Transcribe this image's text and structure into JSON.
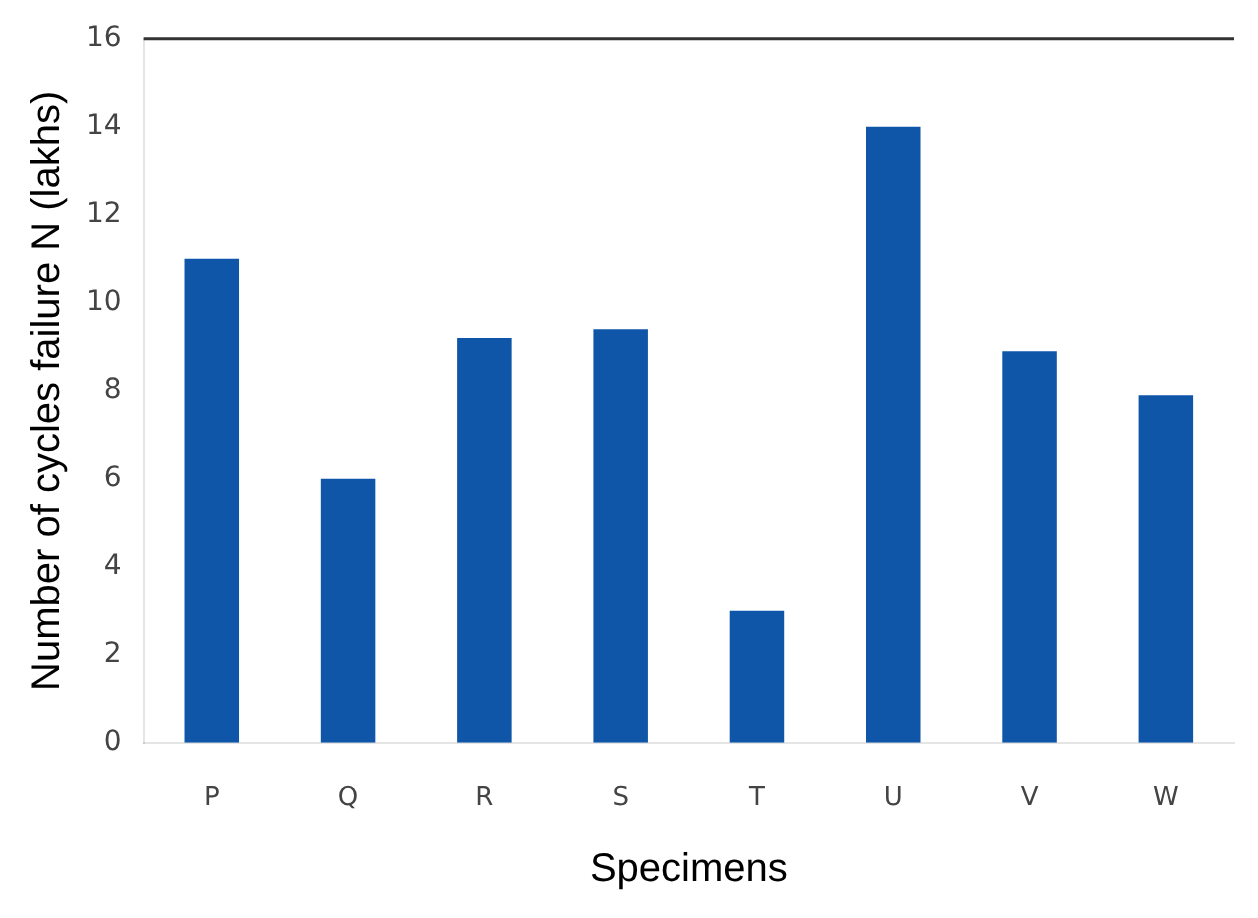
{
  "chart_data": {
    "type": "bar",
    "xlabel": "Specimens",
    "ylabel": "Number of cycles failure N (lakhs)",
    "categories": [
      "P",
      "Q",
      "R",
      "S",
      "T",
      "U",
      "V",
      "W"
    ],
    "values": [
      11,
      6,
      9.2,
      9.4,
      3,
      14,
      8.9,
      7.9
    ],
    "color": "#0f56a8",
    "ylim": [
      0,
      16
    ],
    "yticks": [
      0,
      2,
      4,
      6,
      8,
      10,
      12,
      14,
      16
    ],
    "grid": false
  }
}
